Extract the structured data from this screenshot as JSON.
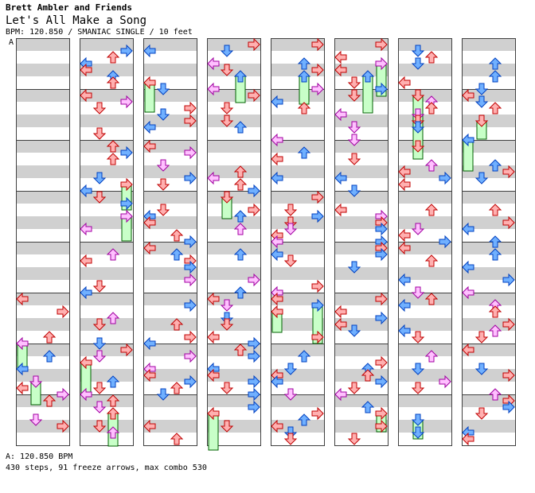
{
  "header": {
    "artist": "Brett Ambler and Friends",
    "title": "Let's All Make a Song",
    "info": "BPM: 120.850 / SMANIAC SINGLE / 10 feet"
  },
  "bpm_marker": "A",
  "footer": {
    "bpm_line": "A: 120.850 BPM",
    "stats_line": "430 steps, 91 freeze arrows, max combo 530"
  },
  "colors": {
    "background": "#ffffff",
    "measure_band": "#d0d0d0",
    "column_border": "#404040",
    "red_arrow_fill": "#ffb0b0",
    "red_arrow_stroke": "#c00000",
    "blue_arrow_fill": "#70b0ff",
    "blue_arrow_stroke": "#0040c0",
    "pink_arrow_fill": "#ffc0ff",
    "pink_arrow_stroke": "#a000a0",
    "freeze_fill": "#c8ffc8",
    "freeze_stroke": "#006000"
  },
  "note_legend": {
    "lanes": [
      "left",
      "down",
      "up",
      "right"
    ],
    "note_kinds": [
      "quarter-red",
      "eighth-blue",
      "sixteenth-pink",
      "freeze-green"
    ]
  }
}
